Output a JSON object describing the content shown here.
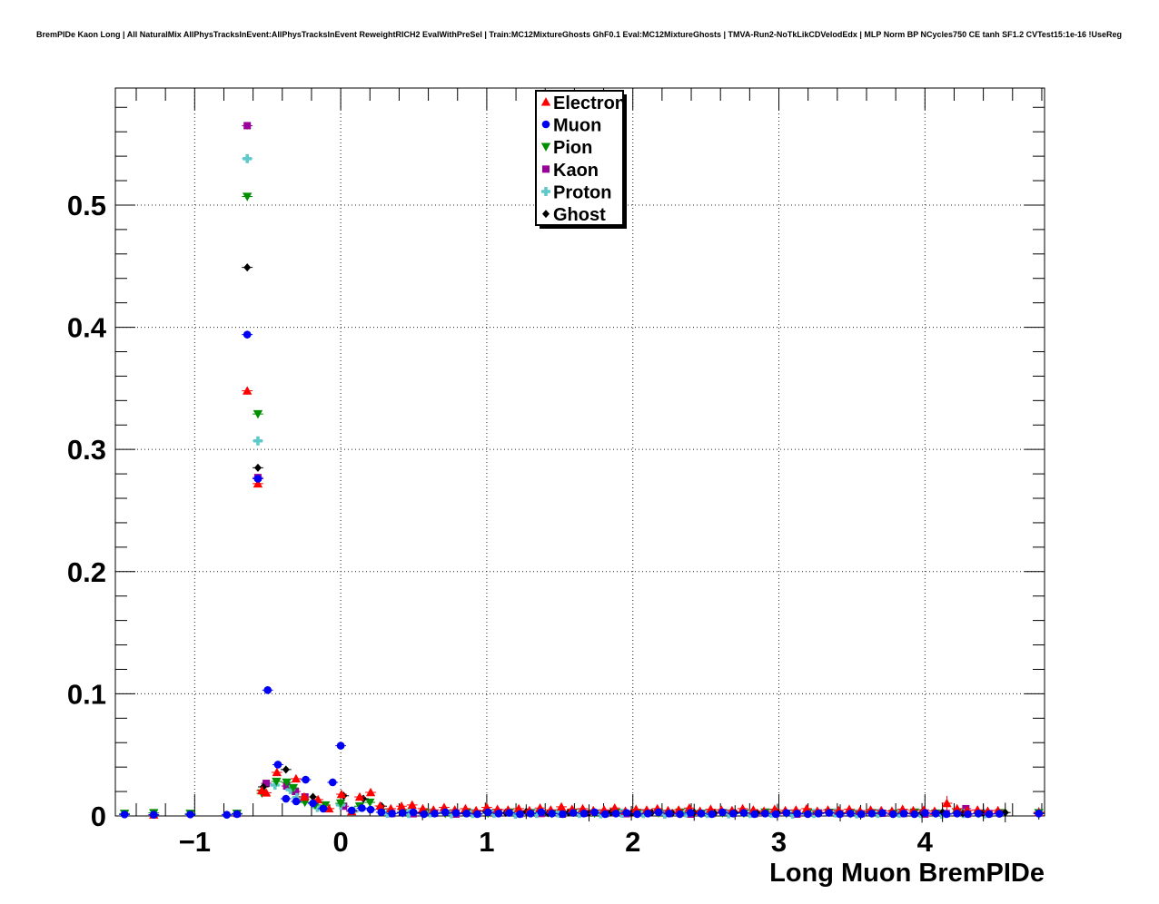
{
  "title": "BremPIDe Kaon Long | All NaturalMix AllPhysTracksInEvent:AllPhysTracksInEvent ReweightRICH2 EvalWithPreSel | Train:MC12MixtureGhosts GhF0.1 Eval:MC12MixtureGhosts | TMVA-Run2-NoTkLikCDVelodEdx | MLP Norm BP NCycles750 CE tanh SF1.2 CVTest15:1e-16 !UseReg",
  "chart_data": {
    "type": "scatter",
    "title": "BremPIDe Kaon Long",
    "xlabel": "Long Muon BremPIDe",
    "ylabel": "",
    "xlim": [
      -1.543,
      4.819
    ],
    "ylim": [
      0,
      0.5958
    ],
    "xtick_values": [
      -1,
      0,
      1,
      2,
      3,
      4
    ],
    "xtick_labels": [
      "−1",
      "0",
      "1",
      "2",
      "3",
      "4"
    ],
    "ytick_values": [
      0,
      0.1,
      0.2,
      0.3,
      0.4,
      0.5
    ],
    "ytick_labels": [
      "0",
      "0.1",
      "0.2",
      "0.3",
      "0.4",
      "0.5"
    ],
    "x_minor_step": 0.2,
    "y_minor_step": 0.02,
    "grid": "dotted-on-major",
    "legend_position": "top-center-inside",
    "series": [
      {
        "name": "Kaon",
        "color": "#990099",
        "marker": "square",
        "points": [
          [
            -0.71,
            0.002
          ],
          [
            -0.64,
            0.565,
            0.003
          ],
          [
            -0.567,
            0.277,
            0.003
          ],
          [
            -0.51,
            0.0267
          ],
          [
            -0.37,
            0.0245
          ],
          [
            -0.31,
            0.02
          ],
          [
            -0.245,
            0.0156
          ],
          [
            0.02,
            0.008
          ],
          [
            4.28,
            0.006
          ]
        ],
        "runs": [
          {
            "x0": 0.35,
            "dx": 0.146,
            "y": [
              0.002,
              0.0018,
              0.0022,
              0.0015,
              0.002,
              0.0025,
              0.0018,
              0.002,
              0.0015,
              0.0022,
              0.002,
              0.0018,
              0.0025,
              0.002,
              0.0015,
              0.002,
              0.0022,
              0.0018,
              0.002,
              0.0015,
              0.0025,
              0.002,
              0.0018,
              0.0022,
              0.002,
              0.0015,
              0.002,
              0.0018,
              0.002
            ]
          }
        ]
      },
      {
        "name": "Proton",
        "color": "#5FC9C9",
        "marker": "plus",
        "points": [
          [
            -0.64,
            0.538,
            0.003
          ],
          [
            -0.567,
            0.307,
            0.003
          ],
          [
            -0.45,
            0.0253
          ],
          [
            -0.345,
            0.0215
          ],
          [
            -0.3,
            0.015
          ],
          [
            -0.16,
            0.007
          ],
          [
            0.0,
            0.009
          ],
          [
            0.09,
            0.004
          ]
        ],
        "runs": [
          {
            "x0": 0.32,
            "dx": 0.146,
            "y": [
              0.0022,
              0.002,
              0.0025,
              0.0018,
              0.002,
              0.0022,
              0.0015,
              0.002,
              0.0025,
              0.002,
              0.0018,
              0.0022,
              0.002,
              0.0015,
              0.0025,
              0.002,
              0.0018,
              0.002,
              0.0022,
              0.0015,
              0.002,
              0.0025,
              0.0018,
              0.002,
              0.0022,
              0.002,
              0.0015,
              0.002,
              0.0018
            ]
          }
        ]
      },
      {
        "name": "Pion",
        "color": "#008F00",
        "marker": "triangle-down",
        "points": [
          [
            -1.48,
            0.002
          ],
          [
            -1.28,
            0.0025
          ],
          [
            -1.03,
            0.002
          ],
          [
            -0.71,
            0.002
          ],
          [
            -0.64,
            0.507,
            0.003
          ],
          [
            -0.567,
            0.329,
            0.003
          ],
          [
            -0.54,
            0.0186
          ],
          [
            -0.44,
            0.0282
          ],
          [
            -0.37,
            0.0275
          ],
          [
            -0.325,
            0.023
          ],
          [
            -0.245,
            0.0111
          ],
          [
            -0.175,
            0.009
          ],
          [
            -0.105,
            0.0089
          ],
          [
            0.0,
            0.0104
          ],
          [
            0.13,
            0.008
          ],
          [
            0.2,
            0.0111
          ],
          [
            4.78,
            0.0025
          ]
        ],
        "runs": [
          {
            "x0": 0.278,
            "dx": 0.146,
            "y": [
              0.003,
              0.0025,
              0.003,
              0.002,
              0.0028,
              0.0022,
              0.003,
              0.0025,
              0.002,
              0.003,
              0.0022,
              0.0028,
              0.002,
              0.0025,
              0.003,
              0.002,
              0.0025,
              0.0022,
              0.003,
              0.002,
              0.0025,
              0.0028,
              0.002,
              0.0025,
              0.002,
              0.003,
              0.0022,
              0.0025,
              0.002,
              0.0025
            ]
          }
        ]
      },
      {
        "name": "Ghost",
        "color": "#000000",
        "marker": "diamond",
        "points": [
          [
            -0.64,
            0.449,
            0.003
          ],
          [
            -0.567,
            0.285,
            0.003
          ],
          [
            -0.53,
            0.0238
          ],
          [
            -0.375,
            0.038
          ],
          [
            -0.19,
            0.0156
          ],
          [
            0.02,
            0.0165
          ],
          [
            0.155,
            0.0141
          ],
          [
            0.28,
            0.008
          ],
          [
            0.42,
            0.003
          ],
          [
            0.56,
            0.0025,
            0.006
          ],
          [
            0.71,
            0.0028
          ],
          [
            0.85,
            0.0022
          ],
          [
            0.99,
            0.004,
            0.007
          ],
          [
            1.13,
            0.0025
          ],
          [
            1.27,
            0.0035,
            0.006
          ],
          [
            1.42,
            0.0022
          ],
          [
            1.56,
            0.0028
          ],
          [
            1.7,
            0.0025,
            0.007
          ],
          [
            1.85,
            0.003
          ],
          [
            1.99,
            0.0022,
            0.006
          ],
          [
            2.13,
            0.0028
          ],
          [
            2.27,
            0.0025
          ],
          [
            2.42,
            0.003,
            0.007
          ],
          [
            2.56,
            0.0022
          ],
          [
            2.7,
            0.0028,
            0.006
          ],
          [
            2.85,
            0.0025
          ],
          [
            2.99,
            0.003,
            0.007
          ],
          [
            3.13,
            0.0022
          ],
          [
            3.27,
            0.0028
          ],
          [
            3.42,
            0.0025,
            0.007
          ],
          [
            3.56,
            0.003,
            0.006
          ],
          [
            3.7,
            0.0022
          ],
          [
            3.85,
            0.0028
          ],
          [
            3.98,
            0.0025,
            0.008
          ],
          [
            4.12,
            0.003,
            0.008
          ],
          [
            4.26,
            0.0022
          ],
          [
            4.4,
            0.0025,
            0.007
          ],
          [
            4.55,
            0.0028,
            0.008
          ],
          [
            4.78,
            0.002,
            0.005
          ]
        ],
        "runs": []
      },
      {
        "name": "Electron",
        "color": "#FF0000",
        "marker": "triangle-up",
        "points": [
          [
            -1.28,
            0.001
          ],
          [
            -0.64,
            0.348,
            0.003
          ],
          [
            -0.567,
            0.272,
            0.003
          ],
          [
            -0.54,
            0.0208
          ],
          [
            -0.51,
            0.019
          ],
          [
            -0.437,
            0.0357
          ],
          [
            -0.306,
            0.0305
          ],
          [
            -0.25,
            0.0156
          ],
          [
            -0.155,
            0.0134
          ],
          [
            -0.08,
            0.006
          ],
          [
            0.005,
            0.0178
          ],
          [
            0.075,
            0.0037
          ],
          [
            0.13,
            0.0156
          ],
          [
            0.205,
            0.0193
          ],
          [
            0.27,
            0.0082
          ],
          [
            4.15,
            0.0104,
            0.006
          ],
          [
            4.22,
            0.006
          ],
          [
            4.29,
            0.0045
          ],
          [
            4.36,
            0.005
          ],
          [
            4.43,
            0.004
          ],
          [
            4.5,
            0.0045
          ],
          [
            4.78,
            0.003
          ]
        ],
        "runs": [
          {
            "x0": 0.343,
            "dx": 0.073,
            "y": [
              0.006,
              0.008,
              0.009,
              0.006,
              0.005,
              0.007,
              0.005,
              0.006,
              0.0045,
              0.007,
              0.0055,
              0.005,
              0.006,
              0.0045,
              0.0065,
              0.005,
              0.0075,
              0.0055,
              0.006,
              0.0045,
              0.005,
              0.0065,
              0.004,
              0.0055,
              0.005,
              0.006,
              0.0045,
              0.005,
              0.0065,
              0.004,
              0.0055,
              0.005,
              0.0045,
              0.006,
              0.005,
              0.004,
              0.0055,
              0.0045,
              0.005,
              0.006,
              0.004,
              0.005,
              0.0045,
              0.0055,
              0.004,
              0.005,
              0.0045,
              0.004,
              0.0055,
              0.0045,
              0.005,
              0.004
            ]
          }
        ]
      },
      {
        "name": "Muon",
        "color": "#0000F5",
        "marker": "circle",
        "points": [
          [
            -1.48,
            0.0012
          ],
          [
            -1.28,
            0.001
          ],
          [
            -1.03,
            0.0012
          ],
          [
            -0.78,
            0.001
          ],
          [
            -0.71,
            0.0015
          ],
          [
            -0.64,
            0.394,
            0.003
          ],
          [
            -0.567,
            0.276,
            0.003
          ],
          [
            -0.5,
            0.103,
            0.002
          ],
          [
            -0.43,
            0.042
          ],
          [
            -0.375,
            0.0141
          ],
          [
            -0.305,
            0.0119
          ],
          [
            -0.24,
            0.0297
          ],
          [
            -0.19,
            0.0104
          ],
          [
            -0.12,
            0.006
          ],
          [
            -0.055,
            0.0275
          ],
          [
            0.0,
            0.0575,
            0.002
          ],
          [
            0.075,
            0.0045
          ],
          [
            0.145,
            0.0064
          ],
          [
            0.205,
            0.0052
          ],
          [
            4.51,
            0.0018
          ],
          [
            4.78,
            0.002
          ]
        ],
        "runs": [
          {
            "x0": 0.278,
            "dx": 0.073,
            "y": [
              0.003,
              0.002,
              0.0025,
              0.003,
              0.0015,
              0.002,
              0.003,
              0.0025,
              0.002,
              0.0015,
              0.003,
              0.002,
              0.0025,
              0.0015,
              0.002,
              0.003,
              0.002,
              0.0015,
              0.0025,
              0.002,
              0.003,
              0.0015,
              0.002,
              0.0025,
              0.0015,
              0.002,
              0.003,
              0.002,
              0.0015,
              0.0025,
              0.002,
              0.0015,
              0.003,
              0.002,
              0.0025,
              0.0015,
              0.002,
              0.0015,
              0.0025,
              0.002,
              0.0015,
              0.002,
              0.0025,
              0.0015,
              0.002,
              0.0015,
              0.002,
              0.0025,
              0.0015,
              0.002,
              0.0015,
              0.0025,
              0.002,
              0.0015,
              0.002,
              0.0015,
              0.002,
              0.0015
            ]
          }
        ]
      }
    ],
    "legend_entries": [
      "Electron",
      "Muon",
      "Pion",
      "Kaon",
      "Proton",
      "Ghost"
    ]
  }
}
